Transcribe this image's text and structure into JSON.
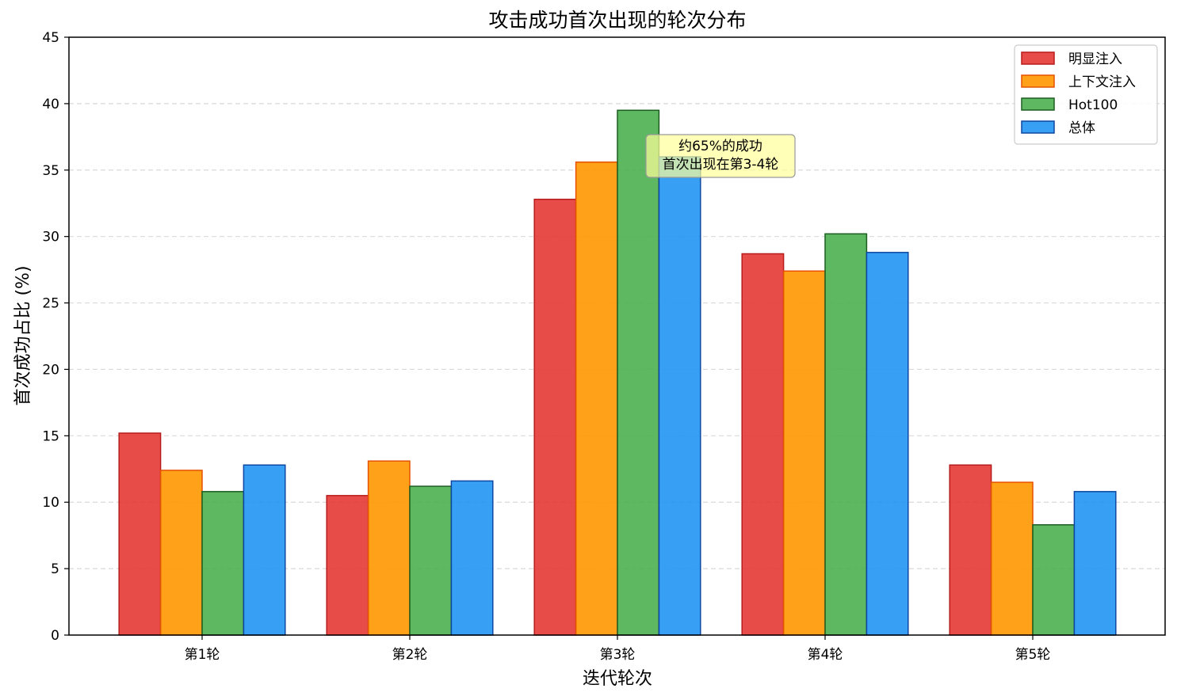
{
  "chart_data": {
    "type": "bar",
    "title": "攻击成功首次出现的轮次分布",
    "xlabel": "迭代轮次",
    "ylabel": "首次成功占比 (%)",
    "categories": [
      "第1轮",
      "第2轮",
      "第3轮",
      "第4轮",
      "第5轮"
    ],
    "ylim": [
      0,
      45
    ],
    "yticks": [
      0,
      5,
      10,
      15,
      20,
      25,
      30,
      35,
      40,
      45
    ],
    "grid": "y-dashed",
    "legend_position": "top-right",
    "series": [
      {
        "name": "明显注入",
        "color": "#e53935",
        "edge": "#b71c1c",
        "values": [
          15.2,
          10.5,
          32.8,
          28.7,
          12.8
        ]
      },
      {
        "name": "上下文注入",
        "color": "#ff9800",
        "edge": "#e65100",
        "values": [
          12.4,
          13.1,
          35.6,
          27.4,
          11.5
        ]
      },
      {
        "name": "Hot100",
        "color": "#4caf50",
        "edge": "#1b5e20",
        "values": [
          10.8,
          11.2,
          39.5,
          30.2,
          8.3
        ]
      },
      {
        "name": "总体",
        "color": "#2196f3",
        "edge": "#0d47a1",
        "values": [
          12.8,
          11.6,
          36.0,
          28.8,
          10.8
        ]
      }
    ],
    "annotation": {
      "lines": [
        "约65%的成功",
        "首次出现在第3-4轮"
      ],
      "anchor_category": 2,
      "anchor_value": 36,
      "box_color": "#ffff99"
    }
  }
}
